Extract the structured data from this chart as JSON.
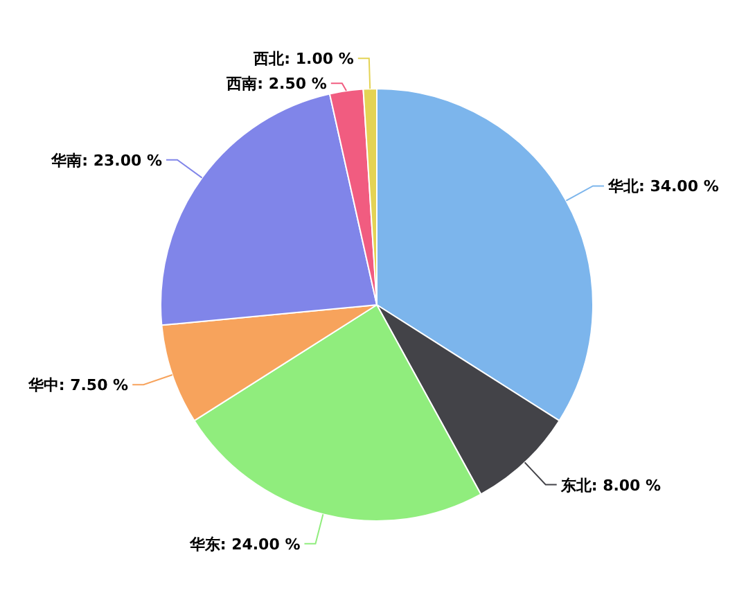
{
  "chart_data": {
    "type": "pie",
    "categories": [
      "华北",
      "东北",
      "华东",
      "华中",
      "华南",
      "西南",
      "西北"
    ],
    "values": [
      34,
      8,
      24,
      7.5,
      23,
      2.5,
      1
    ],
    "value_labels": [
      "34.00 %",
      "8.00 %",
      "24.00 %",
      "7.50 %",
      "23.00 %",
      "2.50 %",
      "1.00 %"
    ],
    "colors": [
      "#7cb5ec",
      "#434348",
      "#90ed7d",
      "#f7a35c",
      "#8085e9",
      "#f15c80",
      "#e4d354"
    ]
  }
}
